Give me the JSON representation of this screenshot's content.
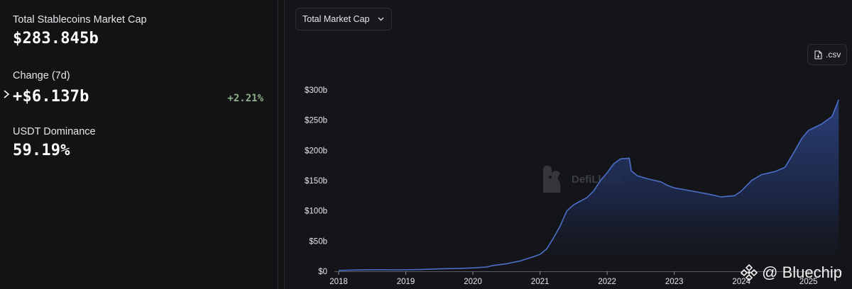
{
  "stats": {
    "market_cap_label": "Total Stablecoins Market Cap",
    "market_cap_value": "$283.845b",
    "change_label": "Change (7d)",
    "change_value": "+$6.137b",
    "change_pct": "+2.21%",
    "dominance_label": "USDT Dominance",
    "dominance_value": "59.19%"
  },
  "controls": {
    "dropdown_label": "Total Market Cap",
    "csv_label": ".csv"
  },
  "watermark": {
    "text": "DefiLlama"
  },
  "brand": {
    "text": "@ Bluechip"
  },
  "colors": {
    "background": "#131316",
    "line": "#4b6fc9",
    "area_top": "#2c427f",
    "positive": "#8fb08a"
  },
  "chart_data": {
    "type": "area",
    "title": "",
    "xlabel": "",
    "ylabel": "",
    "ylim": [
      0,
      300
    ],
    "y_unit": "b",
    "y_ticks": [
      {
        "value": 0,
        "label": "$0"
      },
      {
        "value": 50,
        "label": "$50b"
      },
      {
        "value": 100,
        "label": "$100b"
      },
      {
        "value": 150,
        "label": "$150b"
      },
      {
        "value": 200,
        "label": "$200b"
      },
      {
        "value": 250,
        "label": "$250b"
      },
      {
        "value": 300,
        "label": "$300b"
      }
    ],
    "x_ticks": [
      "2018",
      "2019",
      "2020",
      "2021",
      "2022",
      "2023",
      "2024",
      "2025"
    ],
    "xlim": [
      2018.0,
      2025.5
    ],
    "grid": false,
    "series": [
      {
        "values": [
          [
            2018.0,
            1.4
          ],
          [
            2018.3,
            2.2
          ],
          [
            2018.6,
            2.6
          ],
          [
            2018.9,
            2.4
          ],
          [
            2019.2,
            2.8
          ],
          [
            2019.5,
            4.0
          ],
          [
            2019.8,
            4.8
          ],
          [
            2020.0,
            5.6
          ],
          [
            2020.2,
            7.0
          ],
          [
            2020.3,
            9.5
          ],
          [
            2020.5,
            12.5
          ],
          [
            2020.7,
            17.0
          ],
          [
            2020.9,
            24.0
          ],
          [
            2021.0,
            28.0
          ],
          [
            2021.1,
            37.0
          ],
          [
            2021.2,
            55.0
          ],
          [
            2021.3,
            75.0
          ],
          [
            2021.4,
            100.0
          ],
          [
            2021.5,
            110.0
          ],
          [
            2021.6,
            116.0
          ],
          [
            2021.7,
            122.0
          ],
          [
            2021.8,
            133.0
          ],
          [
            2021.9,
            150.0
          ],
          [
            2022.0,
            163.0
          ],
          [
            2022.1,
            178.0
          ],
          [
            2022.2,
            186.0
          ],
          [
            2022.33,
            187.0
          ],
          [
            2022.36,
            166.0
          ],
          [
            2022.45,
            158.0
          ],
          [
            2022.6,
            153.0
          ],
          [
            2022.8,
            148.0
          ],
          [
            2022.9,
            142.0
          ],
          [
            2023.0,
            138.0
          ],
          [
            2023.3,
            132.0
          ],
          [
            2023.5,
            128.0
          ],
          [
            2023.7,
            123.0
          ],
          [
            2023.9,
            125.0
          ],
          [
            2024.0,
            133.0
          ],
          [
            2024.15,
            150.0
          ],
          [
            2024.3,
            160.0
          ],
          [
            2024.5,
            165.0
          ],
          [
            2024.65,
            172.0
          ],
          [
            2024.8,
            200.0
          ],
          [
            2024.9,
            220.0
          ],
          [
            2025.0,
            233.0
          ],
          [
            2025.2,
            244.0
          ],
          [
            2025.35,
            256.0
          ],
          [
            2025.45,
            283.8
          ]
        ]
      }
    ]
  }
}
